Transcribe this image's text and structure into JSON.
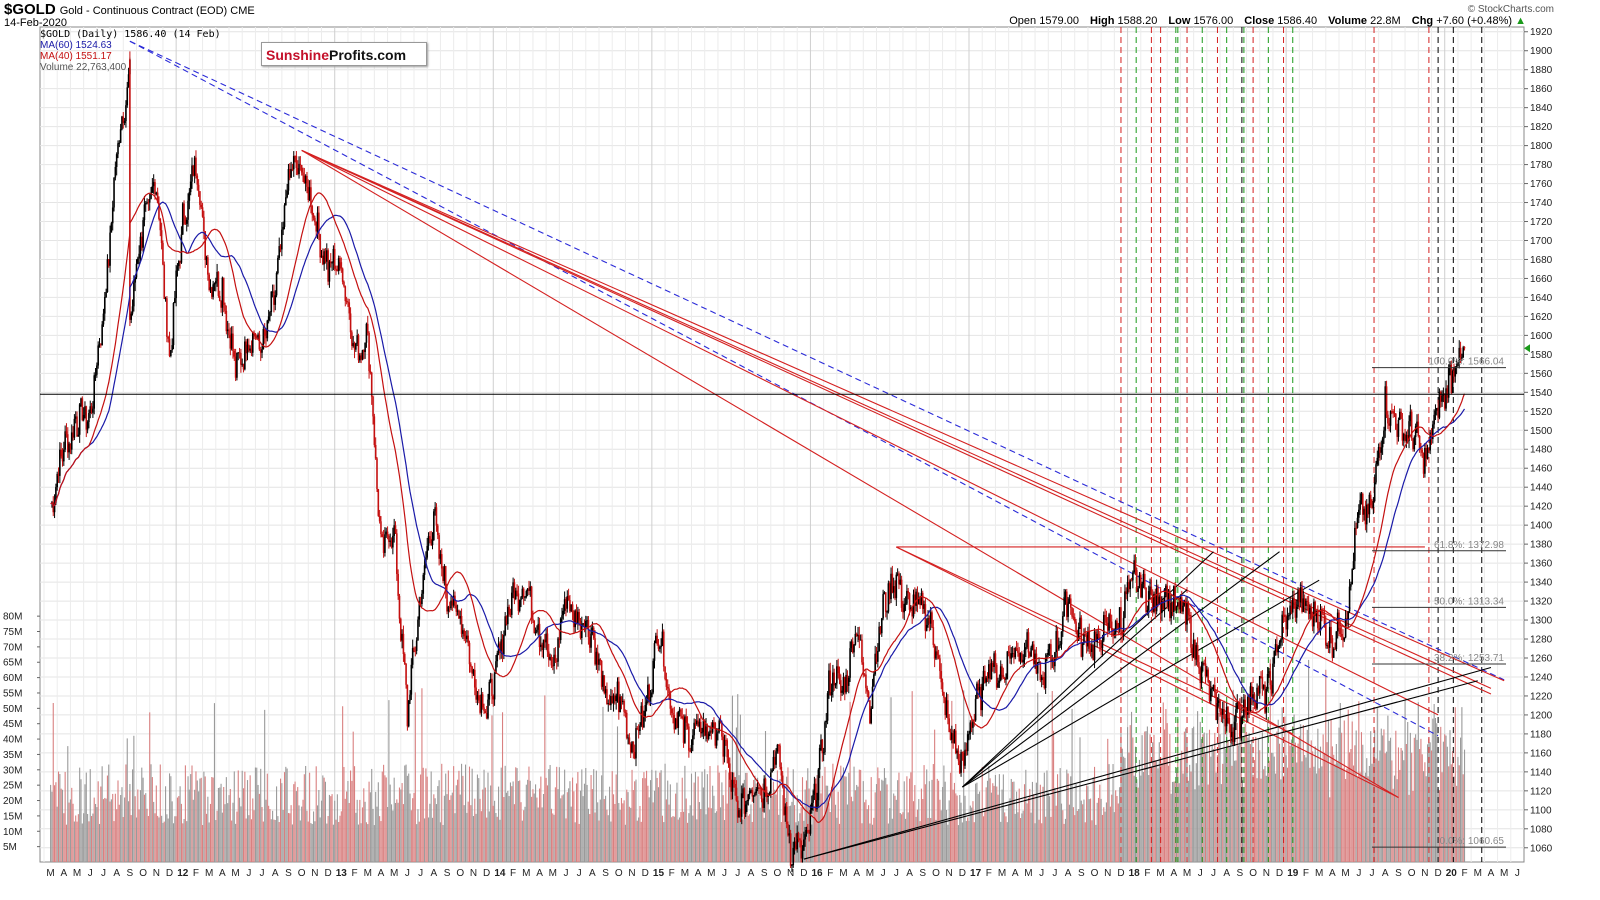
{
  "header": {
    "symbol": "$GOLD",
    "description": "Gold - Continuous Contract (EOD)",
    "exchange": "CME",
    "date": "14-Feb-2020",
    "copyright": "© StockCharts.com",
    "open_label": "Open",
    "open": "1579.00",
    "high_label": "High",
    "high": "1588.20",
    "low_label": "Low",
    "low": "1576.00",
    "close_label": "Close",
    "close": "1586.40",
    "volume_label": "Volume",
    "volume": "22.8M",
    "chg_label": "Chg",
    "chg": "+7.60 (+0.48%)",
    "chg_arrow": "▲"
  },
  "legend": {
    "price": "$GOLD (Daily) 1586.40 (14 Feb)",
    "ma60": "MA(60) 1524.63",
    "ma40": "MA(40) 1551.17",
    "volume": "Volume 22,763,400"
  },
  "logo": {
    "part1": "Sunshine",
    "part2": "Profits.com"
  },
  "colors": {
    "ma60": "#1a1aa8",
    "ma40": "#c41010",
    "up": "#000000",
    "down": "#c41010",
    "trend_red": "#d42020",
    "trend_blue": "#2a2ad8",
    "vline_red": "#d42020",
    "vline_green": "#1a9a1a",
    "vline_black": "#000000"
  },
  "chart_data": {
    "type": "candlestick",
    "y_axis_ticks": [
      1060,
      1080,
      1100,
      1120,
      1140,
      1160,
      1180,
      1200,
      1220,
      1240,
      1260,
      1280,
      1300,
      1320,
      1340,
      1360,
      1380,
      1400,
      1420,
      1440,
      1460,
      1480,
      1500,
      1520,
      1540,
      1560,
      1580,
      1600,
      1620,
      1640,
      1660,
      1680,
      1700,
      1720,
      1740,
      1760,
      1780,
      1800,
      1820,
      1840,
      1860,
      1880,
      1900,
      1920
    ],
    "ylim": [
      1045,
      1925
    ],
    "volume_ticks": [
      "5M",
      "10M",
      "15M",
      "20M",
      "25M",
      "30M",
      "35M",
      "40M",
      "45M",
      "50M",
      "55M",
      "60M",
      "65M",
      "70M",
      "75M",
      "80M"
    ],
    "volume_ylim": [
      0,
      82
    ],
    "x_labels": [
      "M",
      "A",
      "M",
      "J",
      "J",
      "A",
      "S",
      "O",
      "N",
      "D",
      "12",
      "F",
      "M",
      "A",
      "M",
      "J",
      "J",
      "A",
      "S",
      "O",
      "N",
      "D",
      "13",
      "F",
      "M",
      "A",
      "M",
      "J",
      "J",
      "A",
      "S",
      "O",
      "N",
      "D",
      "14",
      "F",
      "M",
      "A",
      "M",
      "J",
      "J",
      "A",
      "S",
      "O",
      "N",
      "D",
      "15",
      "F",
      "M",
      "A",
      "M",
      "J",
      "J",
      "A",
      "S",
      "O",
      "N",
      "D",
      "16",
      "F",
      "M",
      "A",
      "M",
      "J",
      "J",
      "A",
      "S",
      "O",
      "N",
      "D",
      "17",
      "F",
      "M",
      "A",
      "M",
      "J",
      "J",
      "A",
      "S",
      "O",
      "N",
      "D",
      "18",
      "F",
      "M",
      "A",
      "M",
      "J",
      "J",
      "A",
      "S",
      "O",
      "N",
      "D",
      "19",
      "F",
      "M",
      "A",
      "M",
      "J",
      "J",
      "A",
      "S",
      "O",
      "N",
      "D",
      "20",
      "F",
      "M",
      "A",
      "M",
      "J"
    ],
    "x_start": "2011-03",
    "price_path": [
      [
        "2011-03",
        1420
      ],
      [
        "2011-04",
        1480
      ],
      [
        "2011-05",
        1510
      ],
      [
        "2011-06",
        1520
      ],
      [
        "2011-07",
        1620
      ],
      [
        "2011-08",
        1790
      ],
      [
        "2011-09",
        1880
      ],
      [
        "2011-09",
        1620
      ],
      [
        "2011-10",
        1720
      ],
      [
        "2011-11",
        1760
      ],
      [
        "2011-12",
        1580
      ],
      [
        "2012-01",
        1720
      ],
      [
        "2012-02",
        1780
      ],
      [
        "2012-03",
        1660
      ],
      [
        "2012-04",
        1650
      ],
      [
        "2012-05",
        1560
      ],
      [
        "2012-06",
        1600
      ],
      [
        "2012-07",
        1590
      ],
      [
        "2012-08",
        1640
      ],
      [
        "2012-09",
        1770
      ],
      [
        "2012-10",
        1780
      ],
      [
        "2012-11",
        1720
      ],
      [
        "2012-12",
        1670
      ],
      [
        "2013-01",
        1680
      ],
      [
        "2013-02",
        1580
      ],
      [
        "2013-03",
        1600
      ],
      [
        "2013-04",
        1380
      ],
      [
        "2013-05",
        1390
      ],
      [
        "2013-06",
        1200
      ],
      [
        "2013-07",
        1330
      ],
      [
        "2013-08",
        1410
      ],
      [
        "2013-09",
        1320
      ],
      [
        "2013-10",
        1310
      ],
      [
        "2013-11",
        1240
      ],
      [
        "2013-12",
        1200
      ],
      [
        "2014-01",
        1270
      ],
      [
        "2014-02",
        1330
      ],
      [
        "2014-03",
        1330
      ],
      [
        "2014-04",
        1290
      ],
      [
        "2014-05",
        1250
      ],
      [
        "2014-06",
        1320
      ],
      [
        "2014-07",
        1300
      ],
      [
        "2014-08",
        1290
      ],
      [
        "2014-09",
        1210
      ],
      [
        "2014-10",
        1220
      ],
      [
        "2014-11",
        1170
      ],
      [
        "2014-12",
        1200
      ],
      [
        "2015-01",
        1290
      ],
      [
        "2015-02",
        1210
      ],
      [
        "2015-03",
        1180
      ],
      [
        "2015-04",
        1180
      ],
      [
        "2015-05",
        1190
      ],
      [
        "2015-06",
        1170
      ],
      [
        "2015-07",
        1090
      ],
      [
        "2015-08",
        1130
      ],
      [
        "2015-09",
        1120
      ],
      [
        "2015-10",
        1160
      ],
      [
        "2015-11",
        1060
      ],
      [
        "2015-12",
        1060
      ],
      [
        "2016-01",
        1120
      ],
      [
        "2016-02",
        1240
      ],
      [
        "2016-03",
        1230
      ],
      [
        "2016-04",
        1290
      ],
      [
        "2016-05",
        1210
      ],
      [
        "2016-06",
        1320
      ],
      [
        "2016-07",
        1340
      ],
      [
        "2016-08",
        1310
      ],
      [
        "2016-09",
        1320
      ],
      [
        "2016-10",
        1270
      ],
      [
        "2016-11",
        1180
      ],
      [
        "2016-12",
        1150
      ],
      [
        "2017-01",
        1210
      ],
      [
        "2017-02",
        1250
      ],
      [
        "2017-03",
        1245
      ],
      [
        "2017-04",
        1270
      ],
      [
        "2017-05",
        1270
      ],
      [
        "2017-06",
        1240
      ],
      [
        "2017-07",
        1270
      ],
      [
        "2017-08",
        1320
      ],
      [
        "2017-09",
        1280
      ],
      [
        "2017-10",
        1275
      ],
      [
        "2017-11",
        1290
      ],
      [
        "2017-12",
        1300
      ],
      [
        "2018-01",
        1350
      ],
      [
        "2018-02",
        1320
      ],
      [
        "2018-03",
        1325
      ],
      [
        "2018-04",
        1320
      ],
      [
        "2018-05",
        1300
      ],
      [
        "2018-06",
        1250
      ],
      [
        "2018-07",
        1220
      ],
      [
        "2018-08",
        1190
      ],
      [
        "2018-09",
        1195
      ],
      [
        "2018-10",
        1230
      ],
      [
        "2018-11",
        1220
      ],
      [
        "2018-12",
        1280
      ],
      [
        "2019-01",
        1320
      ],
      [
        "2019-02",
        1315
      ],
      [
        "2019-03",
        1300
      ],
      [
        "2019-04",
        1280
      ],
      [
        "2019-05",
        1300
      ],
      [
        "2019-06",
        1410
      ],
      [
        "2019-07",
        1420
      ],
      [
        "2019-08",
        1530
      ],
      [
        "2019-09",
        1500
      ],
      [
        "2019-10",
        1500
      ],
      [
        "2019-11",
        1470
      ],
      [
        "2019-12",
        1520
      ],
      [
        "2020-01",
        1560
      ],
      [
        "2020-02",
        1586.4
      ]
    ],
    "horizontal_lines": [
      {
        "value": 1538,
        "style": "solid",
        "color": "#000000",
        "span": "full"
      },
      {
        "value": 1566.04,
        "label": "100.0%: 1566.04"
      },
      {
        "value": 1372.98,
        "label": "61.8%: 1372.98"
      },
      {
        "value": 1313.34,
        "label": "50.0%: 1313.34"
      },
      {
        "value": 1253.71,
        "label": "38.2%: 1253.71"
      },
      {
        "value": 1060.65,
        "label": "0.0%: 1060.65"
      }
    ],
    "last_value": 1586.4
  }
}
